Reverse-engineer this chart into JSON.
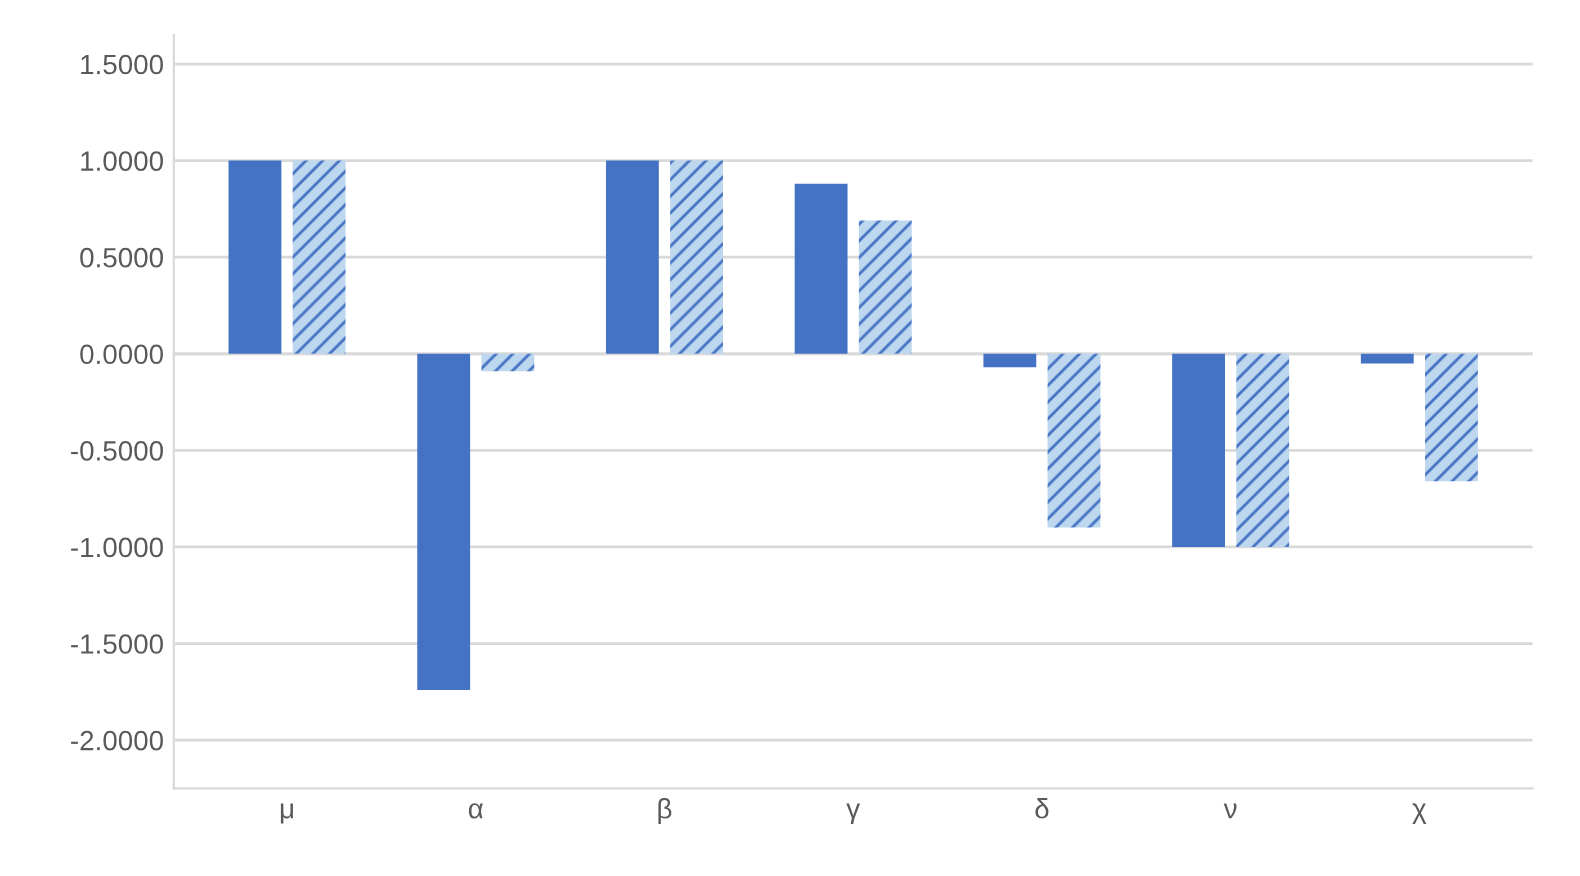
{
  "chart_data": {
    "type": "bar",
    "categories": [
      "μ",
      "α",
      "β",
      "γ",
      "δ",
      "ν",
      "χ"
    ],
    "series": [
      {
        "color": "#4472c4",
        "values": [
          1.0,
          -1.74,
          1.0,
          0.88,
          -0.07,
          -1.0,
          -0.05
        ]
      },
      {
        "color": "#bdd7ee",
        "values": [
          1.0,
          -0.09,
          1.0,
          0.69,
          -0.9,
          -1.0,
          -0.66
        ]
      }
    ],
    "ylim": [
      -2.25,
      1.65
    ],
    "yticks": [
      {
        "value": -2.0,
        "label": "-2.0000"
      },
      {
        "value": -1.5,
        "label": "-1.5000"
      },
      {
        "value": -1.0,
        "label": "-1.0000"
      },
      {
        "value": -0.5,
        "label": "-0.5000"
      },
      {
        "value": 0.0,
        "label": "0.0000"
      },
      {
        "value": 0.5,
        "label": "0.5000"
      },
      {
        "value": 1.0,
        "label": "1.0000"
      },
      {
        "value": 1.5,
        "label": "1.5000"
      }
    ],
    "grid": "y"
  }
}
